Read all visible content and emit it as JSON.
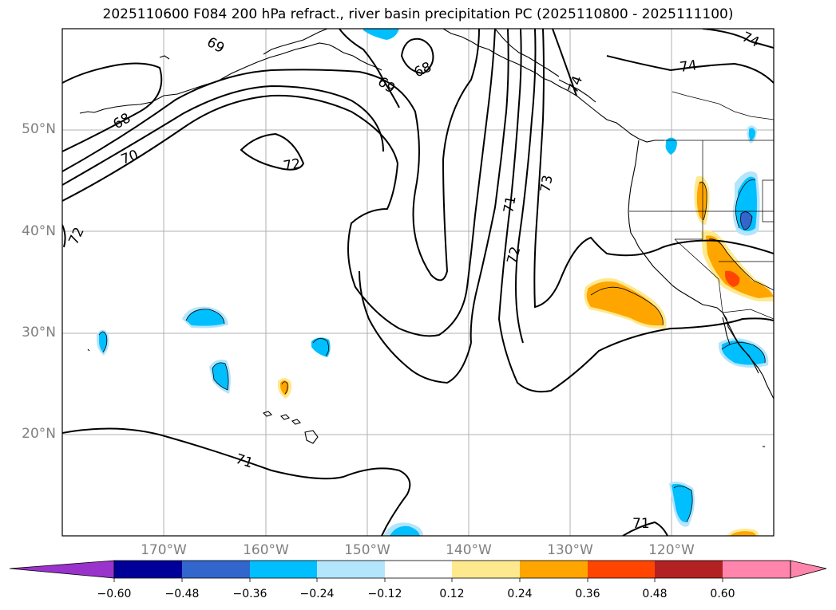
{
  "title": "2025110600 F084 200 hPa refract., river basin precipitation PC (2025110800 - 2025111100)",
  "map": {
    "lon_range": [
      -180,
      -110
    ],
    "lat_range": [
      10,
      60
    ],
    "lat_labels": [
      "50°N",
      "40°N",
      "30°N",
      "20°N"
    ],
    "lon_labels": [
      "170°W",
      "160°W",
      "150°W",
      "140°W",
      "130°W",
      "120°W"
    ],
    "gridlines": true,
    "contour_labels": [
      "69",
      "68",
      "68",
      "74",
      "74",
      "74",
      "69",
      "70",
      "72",
      "72",
      "71",
      "73",
      "72",
      "71",
      "71"
    ]
  },
  "colorbar": {
    "ticks": [
      "−0.60",
      "−0.48",
      "−0.36",
      "−0.24",
      "−0.12",
      "0.12",
      "0.24",
      "0.36",
      "0.48",
      "0.60"
    ],
    "colors": [
      "#9933cc",
      "#000099",
      "#3366cc",
      "#00bfff",
      "#b3e5fc",
      "#ffffff",
      "#ffe98f",
      "#ffa500",
      "#ff4500",
      "#b22222",
      "#ff85ad"
    ]
  }
}
